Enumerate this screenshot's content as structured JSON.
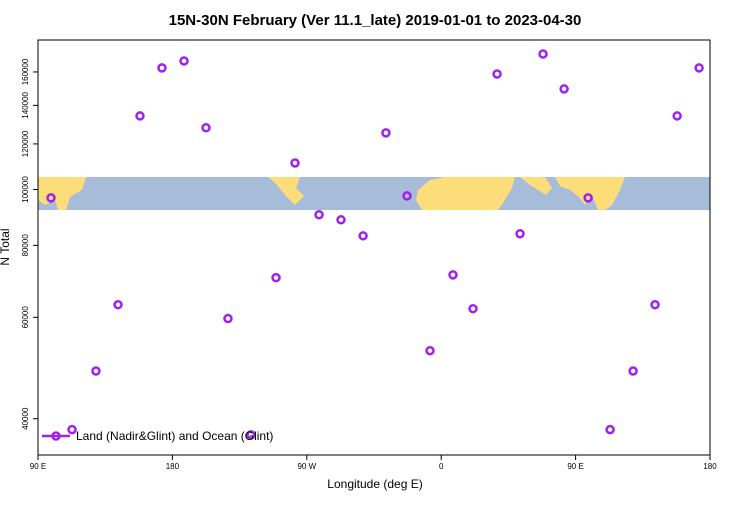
{
  "chart_data": {
    "type": "scatter",
    "title": "15N-30N February (Ver 11.1_late)   2019-01-01 to 2023-04-30",
    "x_label": "Longitude (deg E)",
    "y_label": "N Total",
    "log_y": true,
    "legend": "bottom-left",
    "xlim": [
      90,
      540
    ],
    "ylim": [
      34600,
      181800
    ],
    "xticks": [
      {
        "value": 90,
        "label": "90 E"
      },
      {
        "value": 180,
        "label": "180"
      },
      {
        "value": 270,
        "label": "90 W"
      },
      {
        "value": 360,
        "label": "0"
      },
      {
        "value": 450,
        "label": "90 E"
      },
      {
        "value": 540,
        "label": "180"
      }
    ],
    "yticks": [
      40000,
      60000,
      80000,
      100000,
      120000,
      140000,
      160000
    ],
    "series": [
      {
        "name": "Land (Nadir&Glint) and Ocean (Glint)",
        "color": "#a020f0",
        "x": [
          98.7,
          112.8,
          128.8,
          143.6,
          158.3,
          173.0,
          187.8,
          202.5,
          217.2,
          232.6,
          249.4,
          262.1,
          278.2,
          292.9,
          307.7,
          323.0,
          337.1,
          352.5,
          367.9,
          381.3,
          397.4,
          412.8,
          428.2,
          442.3,
          458.4,
          473.1,
          488.5,
          503.2,
          518.0,
          532.7
        ],
        "values": [
          96700,
          38300,
          48400,
          63100,
          134200,
          162600,
          167200,
          128000,
          59700,
          37500,
          70300,
          111200,
          90400,
          88600,
          83100,
          125400,
          97500,
          52500,
          71100,
          62100,
          158700,
          83800,
          171900,
          149500,
          96700,
          38300,
          48400,
          63100,
          134200,
          162600
        ]
      }
    ]
  }
}
